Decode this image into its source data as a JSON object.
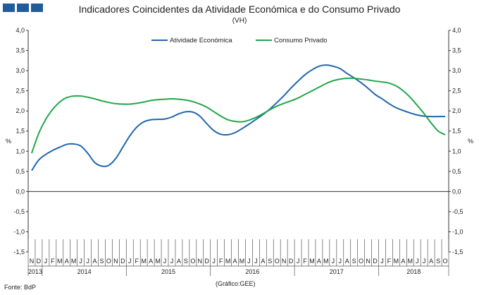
{
  "header": {
    "title": "Indicadores Coincidentes da Atividade Económica e do Consumo Privado",
    "subtitle": "(VH)"
  },
  "footer": {
    "source": "Fonte: BdP",
    "credit": "(Gráfico:GEE)"
  },
  "colors": {
    "atividade": "#1f66ad",
    "consumo": "#23a64a",
    "logo": "#1f5c99"
  },
  "chart_data": {
    "type": "line",
    "title": "Indicadores Coincidentes da Atividade Económica e do Consumo Privado",
    "subtitle": "(VH)",
    "ylabel_left": "%",
    "ylabel_right": "%",
    "ylim": [
      -1.5,
      4.0
    ],
    "yticks": [
      "4,0",
      "3,5",
      "3,0",
      "2,5",
      "2,0",
      "1,5",
      "1,0",
      "0,5",
      "0,0",
      "-0,5",
      "-1,0",
      "-1,5"
    ],
    "legend_position": "top",
    "months": [
      "N",
      "D",
      "J",
      "F",
      "M",
      "A",
      "M",
      "J",
      "J",
      "A",
      "S",
      "O",
      "N",
      "D",
      "J",
      "F",
      "M",
      "A",
      "M",
      "J",
      "J",
      "A",
      "S",
      "O",
      "N",
      "D",
      "J",
      "F",
      "M",
      "A",
      "M",
      "J",
      "J",
      "A",
      "S",
      "O",
      "N",
      "D",
      "J",
      "F",
      "M",
      "A",
      "M",
      "J",
      "J",
      "A",
      "S",
      "O",
      "N",
      "D",
      "J",
      "F",
      "M",
      "A",
      "M",
      "J",
      "J",
      "A",
      "S",
      "O"
    ],
    "years": [
      {
        "label": "2013",
        "months": 2
      },
      {
        "label": "2014",
        "months": 12
      },
      {
        "label": "2015",
        "months": 12
      },
      {
        "label": "2016",
        "months": 12
      },
      {
        "label": "2017",
        "months": 12
      },
      {
        "label": "2018",
        "months": 10
      }
    ],
    "series": [
      {
        "name": "Atividade Económica",
        "values": [
          0.52,
          0.78,
          0.92,
          1.02,
          1.1,
          1.17,
          1.18,
          1.13,
          0.95,
          0.72,
          0.63,
          0.65,
          0.82,
          1.1,
          1.38,
          1.6,
          1.73,
          1.78,
          1.79,
          1.8,
          1.85,
          1.93,
          1.98,
          1.97,
          1.87,
          1.68,
          1.51,
          1.42,
          1.41,
          1.46,
          1.56,
          1.67,
          1.79,
          1.91,
          2.05,
          2.21,
          2.38,
          2.57,
          2.74,
          2.9,
          3.02,
          3.11,
          3.14,
          3.11,
          3.05,
          2.93,
          2.82,
          2.7,
          2.56,
          2.41,
          2.3,
          2.18,
          2.08,
          2.01,
          1.95,
          1.9,
          1.87,
          1.86,
          1.86,
          1.86
        ]
      },
      {
        "name": "Consumo Privado",
        "values": [
          0.95,
          1.44,
          1.79,
          2.04,
          2.22,
          2.33,
          2.37,
          2.37,
          2.34,
          2.3,
          2.25,
          2.21,
          2.18,
          2.17,
          2.17,
          2.19,
          2.22,
          2.26,
          2.28,
          2.29,
          2.3,
          2.29,
          2.27,
          2.23,
          2.17,
          2.09,
          1.98,
          1.87,
          1.78,
          1.74,
          1.73,
          1.77,
          1.84,
          1.93,
          2.03,
          2.12,
          2.19,
          2.25,
          2.32,
          2.41,
          2.5,
          2.59,
          2.68,
          2.75,
          2.79,
          2.81,
          2.81,
          2.79,
          2.77,
          2.74,
          2.72,
          2.69,
          2.62,
          2.5,
          2.34,
          2.14,
          1.93,
          1.7,
          1.5,
          1.41
        ]
      }
    ]
  }
}
